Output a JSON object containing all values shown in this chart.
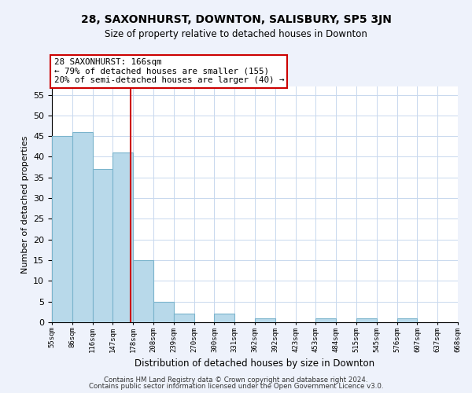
{
  "title": "28, SAXONHURST, DOWNTON, SALISBURY, SP5 3JN",
  "subtitle": "Size of property relative to detached houses in Downton",
  "xlabel": "Distribution of detached houses by size in Downton",
  "ylabel": "Number of detached properties",
  "bar_values": [
    45,
    46,
    37,
    41,
    15,
    5,
    2,
    0,
    2,
    0,
    1,
    0,
    0,
    1,
    0,
    1,
    0,
    1,
    0,
    0
  ],
  "bin_labels": [
    "55sqm",
    "86sqm",
    "116sqm",
    "147sqm",
    "178sqm",
    "208sqm",
    "239sqm",
    "270sqm",
    "300sqm",
    "331sqm",
    "362sqm",
    "392sqm",
    "423sqm",
    "453sqm",
    "484sqm",
    "515sqm",
    "545sqm",
    "576sqm",
    "607sqm",
    "637sqm",
    "668sqm"
  ],
  "bar_color": "#b8d9ea",
  "bar_edge_color": "#7ab4cc",
  "vline_x": 3.87,
  "vline_color": "#cc0000",
  "annotation_title": "28 SAXONHURST: 166sqm",
  "annotation_line1": "← 79% of detached houses are smaller (155)",
  "annotation_line2": "20% of semi-detached houses are larger (40) →",
  "annotation_box_color": "#ffffff",
  "annotation_box_edge": "#cc0000",
  "ylim": [
    0,
    57
  ],
  "yticks": [
    0,
    5,
    10,
    15,
    20,
    25,
    30,
    35,
    40,
    45,
    50,
    55
  ],
  "footer1": "Contains HM Land Registry data © Crown copyright and database right 2024.",
  "footer2": "Contains public sector information licensed under the Open Government Licence v3.0.",
  "background_color": "#eef2fb",
  "plot_background": "#ffffff",
  "grid_color": "#c8d8ee"
}
